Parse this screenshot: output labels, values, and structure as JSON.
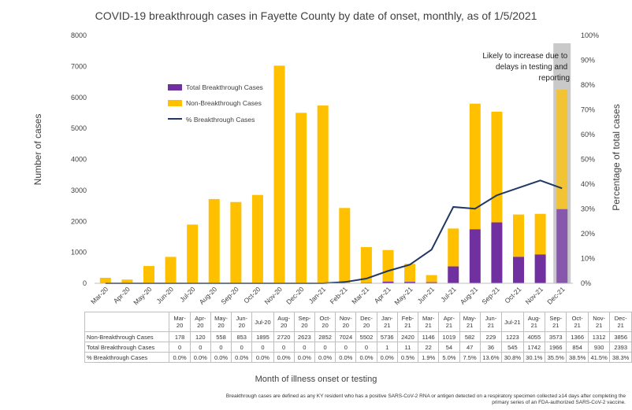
{
  "chart_data": {
    "type": "bar",
    "title": "COVID-19 breakthrough cases in Fayette County by date of onset, monthly, as of 1/5/2021",
    "xlabel": "Month of illness onset or testing",
    "ylabel": "Number of cases",
    "y2label": "Percentage of total cases",
    "ylim": [
      0,
      8000
    ],
    "y2lim": [
      0,
      100
    ],
    "yticks": [
      "0",
      "1000",
      "2000",
      "3000",
      "4000",
      "5000",
      "6000",
      "7000",
      "8000"
    ],
    "y2ticks": [
      "0%",
      "10%",
      "20%",
      "30%",
      "40%",
      "50%",
      "60%",
      "70%",
      "80%",
      "90%",
      "100%"
    ],
    "categories": [
      "Mar-20",
      "Apr-20",
      "May-20",
      "Jun-20",
      "Jul-20",
      "Aug-20",
      "Sep-20",
      "Oct-20",
      "Nov-20",
      "Dec-20",
      "Jan-21",
      "Feb-21",
      "Mar-21",
      "Apr-21",
      "May-21",
      "Jun-21",
      "Jul-21",
      "Aug-21",
      "Sep-21",
      "Oct-21",
      "Nov-21",
      "Dec-21"
    ],
    "series": [
      {
        "name": "Total Breakthrough Cases",
        "color": "#7030a0",
        "values": [
          0,
          0,
          0,
          0,
          0,
          0,
          0,
          0,
          0,
          0,
          1,
          11,
          22,
          54,
          47,
          36,
          545,
          1742,
          1966,
          854,
          930,
          2393
        ]
      },
      {
        "name": "Non-Breakthrough Cases",
        "color": "#ffc000",
        "values": [
          178,
          120,
          558,
          853,
          1895,
          2720,
          2623,
          2852,
          7024,
          5502,
          5736,
          2420,
          1146,
          1019,
          582,
          229,
          1223,
          4055,
          3573,
          1366,
          1312,
          3856
        ]
      },
      {
        "name": "% Breakthrough Cases",
        "color": "#1f3864",
        "axis": "right",
        "values": [
          0.0,
          0.0,
          0.0,
          0.0,
          0.0,
          0.0,
          0.0,
          0.0,
          0.0,
          0.0,
          0.0,
          0.5,
          1.9,
          5.0,
          7.5,
          13.6,
          30.8,
          30.1,
          35.5,
          38.5,
          41.5,
          38.3
        ]
      }
    ],
    "legend_position": "top-left",
    "grid": false,
    "annotation": "Likely to increase due to delays in testing and reporting"
  },
  "table": {
    "header_labels": [
      "Mar-\n20",
      "Apr-\n20",
      "May-\n20",
      "Jun-\n20",
      "Jul-20",
      "Aug-\n20",
      "Sep-\n20",
      "Oct-\n20",
      "Nov-\n20",
      "Dec-\n20",
      "Jan-\n21",
      "Feb-\n21",
      "Mar-\n21",
      "Apr-\n21",
      "May-\n21",
      "Jun-\n21",
      "Jul-21",
      "Aug-\n21",
      "Sep-\n21",
      "Oct-\n21",
      "Nov-\n21",
      "Dec-\n21"
    ],
    "rows": [
      {
        "label": "Non-Breakthrough Cases",
        "cells": [
          "178",
          "120",
          "558",
          "853",
          "1895",
          "2720",
          "2623",
          "2852",
          "7024",
          "5502",
          "5736",
          "2420",
          "1146",
          "1019",
          "582",
          "229",
          "1223",
          "4055",
          "3573",
          "1366",
          "1312",
          "3856"
        ]
      },
      {
        "label": "Total Breakthrough Cases",
        "cells": [
          "0",
          "0",
          "0",
          "0",
          "0",
          "0",
          "0",
          "0",
          "0",
          "0",
          "1",
          "11",
          "22",
          "54",
          "47",
          "36",
          "545",
          "1742",
          "1966",
          "854",
          "930",
          "2393"
        ]
      },
      {
        "label": "% Breakthrough Cases",
        "cells": [
          "0.0%",
          "0.0%",
          "0.0%",
          "0.0%",
          "0.0%",
          "0.0%",
          "0.0%",
          "0.0%",
          "0.0%",
          "0.0%",
          "0.0%",
          "0.5%",
          "1.9%",
          "5.0%",
          "7.5%",
          "13.6%",
          "30.8%",
          "30.1%",
          "35.5%",
          "38.5%",
          "41.5%",
          "38.3%"
        ]
      }
    ]
  },
  "footnote": "Breakthrough cases are defined as any KY resident who has a positive SARS-CoV-2 RNA or antigen detected on a respiratory specimen collected ≥14 days after completing the primary series of an FDA-authorized SARS-CoV-2 vaccine."
}
